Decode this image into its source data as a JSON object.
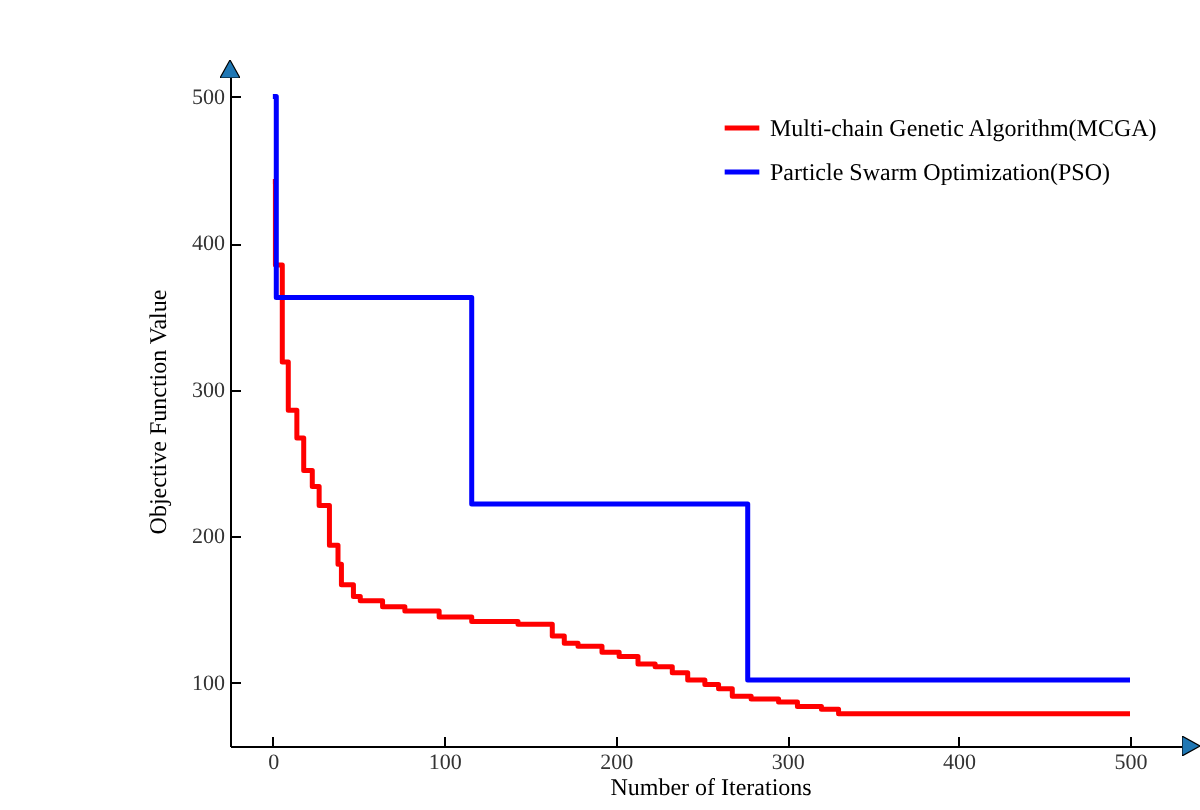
{
  "chart_data": {
    "type": "step",
    "xlabel": "Number of Iterations",
    "ylabel": "Objective Function Value",
    "xlim": [
      -25,
      535
    ],
    "ylim": [
      57,
      514
    ],
    "xticks": [
      0,
      100,
      200,
      300,
      400,
      500
    ],
    "yticks": [
      100,
      200,
      300,
      400,
      500
    ],
    "legend": "top right",
    "series": [
      {
        "name": "Multi-chain Genetic Algorithm(MCGA)",
        "color": "#ff0000",
        "x": [
          0,
          1.5,
          5.5,
          9,
          14,
          18,
          23,
          27,
          33,
          38,
          40,
          47,
          51,
          64,
          77,
          97,
          116,
          143,
          163,
          170,
          178,
          192,
          202,
          213,
          223,
          233,
          242,
          252,
          260,
          268,
          279,
          295,
          306,
          320,
          330,
          500
        ],
        "values": [
          442,
          385,
          319,
          286,
          267,
          245,
          234,
          221,
          194,
          181,
          167,
          159,
          156,
          152,
          149,
          145,
          142,
          140,
          132,
          127,
          125,
          121,
          118,
          113,
          111,
          107,
          102,
          99,
          96,
          91,
          89,
          87,
          84,
          82,
          79,
          79
        ]
      },
      {
        "name": "Particle Swarm Optimization(PSO)",
        "color": "#0000ff",
        "x": [
          0,
          2,
          116,
          277,
          500
        ],
        "values": [
          500,
          363,
          222,
          102,
          102
        ]
      }
    ]
  }
}
